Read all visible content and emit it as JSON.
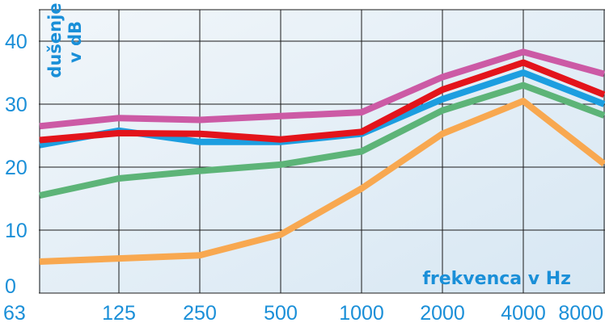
{
  "chart_data": {
    "type": "line",
    "title": "",
    "xlabel": "frekvenca v Hz",
    "ylabel": [
      "dušenje",
      "v dB"
    ],
    "categories": [
      "63",
      "125",
      "250",
      "500",
      "1000",
      "2000",
      "4000",
      "8000"
    ],
    "yticks": [
      "0",
      "10",
      "20",
      "30",
      "40"
    ],
    "ylim": [
      0,
      45
    ],
    "grid": true,
    "legend": "none",
    "series": [
      {
        "color": "#cc5aa5",
        "values": [
          26.5,
          27.8,
          27.5,
          28.1,
          28.7,
          34.3,
          38.3,
          34.8
        ]
      },
      {
        "color": "#1c9ee0",
        "values": [
          23.5,
          25.8,
          24.0,
          24.0,
          25.3,
          30.8,
          35.0,
          30.0
        ]
      },
      {
        "color": "#e3141b",
        "values": [
          24.3,
          25.4,
          25.3,
          24.4,
          25.6,
          32.3,
          36.6,
          31.5
        ]
      },
      {
        "color": "#5db478",
        "values": [
          15.5,
          18.2,
          19.4,
          20.4,
          22.5,
          29.0,
          33.0,
          28.2
        ]
      },
      {
        "color": "#f8a850",
        "values": [
          5.0,
          5.5,
          6.0,
          9.3,
          16.6,
          25.3,
          30.5,
          20.5
        ]
      }
    ],
    "colors": {
      "background": "#e3eef6",
      "grid": "#1a1a1a",
      "text": "#1a8fd8"
    }
  }
}
